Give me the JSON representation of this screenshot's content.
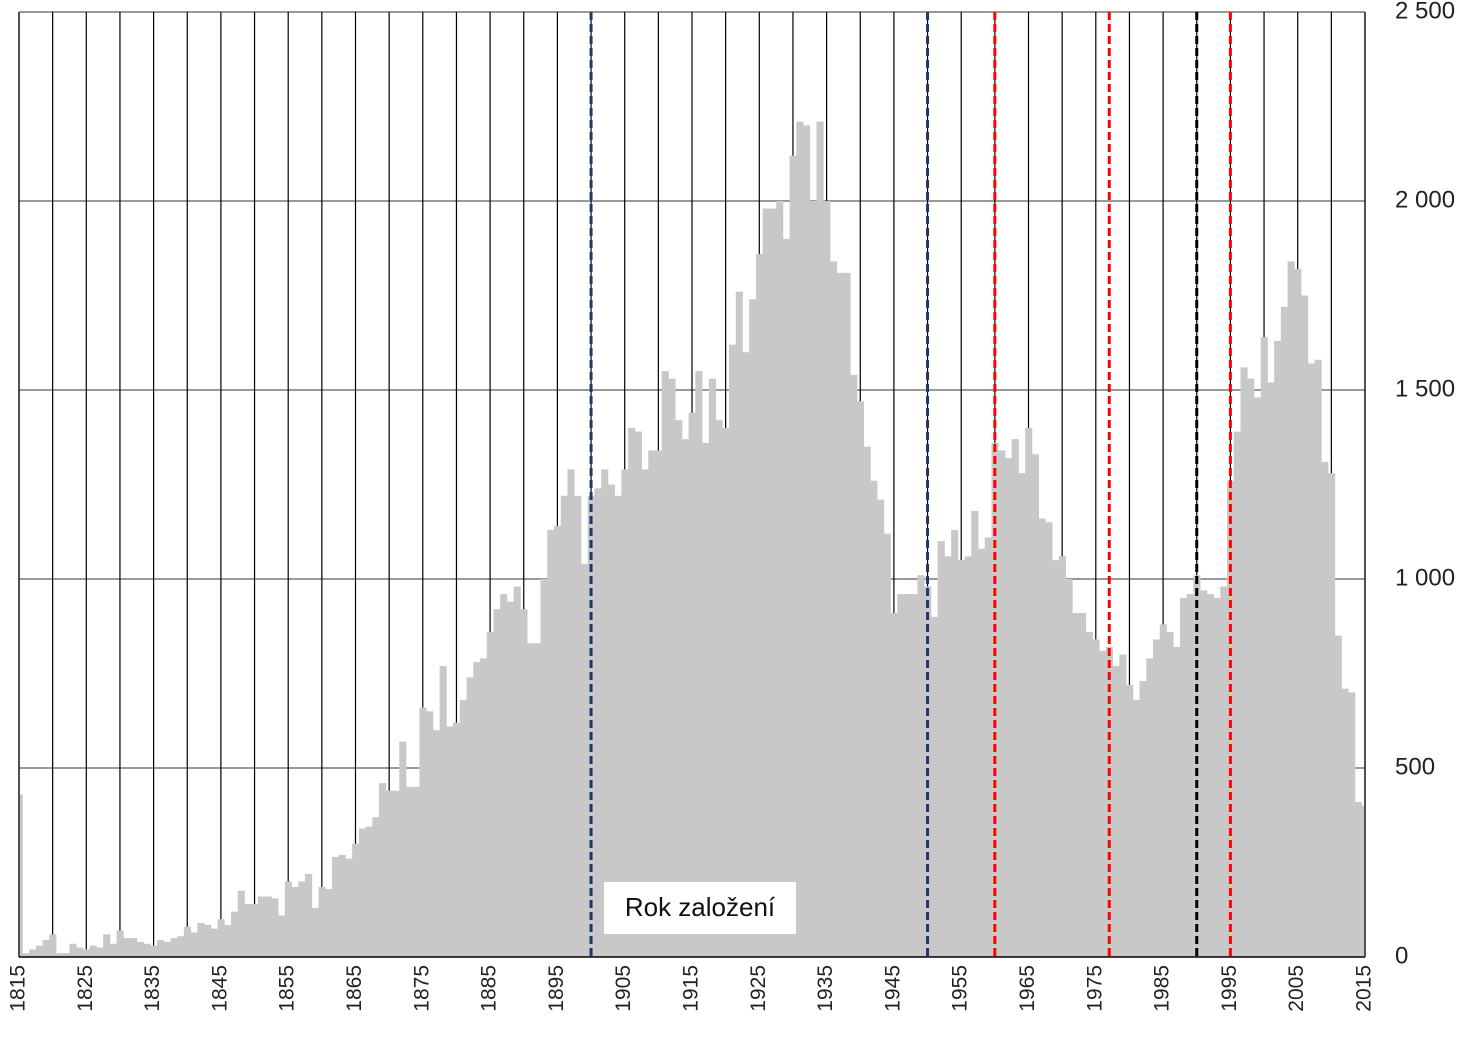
{
  "chart_data": {
    "type": "bar",
    "x": [
      1815,
      1816,
      1817,
      1818,
      1819,
      1820,
      1821,
      1822,
      1823,
      1824,
      1825,
      1826,
      1827,
      1828,
      1829,
      1830,
      1831,
      1832,
      1833,
      1834,
      1835,
      1836,
      1837,
      1838,
      1839,
      1840,
      1841,
      1842,
      1843,
      1844,
      1845,
      1846,
      1847,
      1848,
      1849,
      1850,
      1851,
      1852,
      1853,
      1854,
      1855,
      1856,
      1857,
      1858,
      1859,
      1860,
      1861,
      1862,
      1863,
      1864,
      1865,
      1866,
      1867,
      1868,
      1869,
      1870,
      1871,
      1872,
      1873,
      1874,
      1875,
      1876,
      1877,
      1878,
      1879,
      1880,
      1881,
      1882,
      1883,
      1884,
      1885,
      1886,
      1887,
      1888,
      1889,
      1890,
      1891,
      1892,
      1893,
      1894,
      1895,
      1896,
      1897,
      1898,
      1899,
      1900,
      1901,
      1902,
      1903,
      1904,
      1905,
      1906,
      1907,
      1908,
      1909,
      1910,
      1911,
      1912,
      1913,
      1914,
      1915,
      1916,
      1917,
      1918,
      1919,
      1920,
      1921,
      1922,
      1923,
      1924,
      1925,
      1926,
      1927,
      1928,
      1929,
      1930,
      1931,
      1932,
      1933,
      1934,
      1935,
      1936,
      1937,
      1938,
      1939,
      1940,
      1941,
      1942,
      1943,
      1944,
      1945,
      1946,
      1947,
      1948,
      1949,
      1950,
      1951,
      1952,
      1953,
      1954,
      1955,
      1956,
      1957,
      1958,
      1959,
      1960,
      1961,
      1962,
      1963,
      1964,
      1965,
      1966,
      1967,
      1968,
      1969,
      1970,
      1971,
      1972,
      1973,
      1974,
      1975,
      1976,
      1977,
      1978,
      1979,
      1980,
      1981,
      1982,
      1983,
      1984,
      1985,
      1986,
      1987,
      1988,
      1989,
      1990,
      1991,
      1992,
      1993,
      1994,
      1995,
      1996,
      1997,
      1998,
      1999,
      2000,
      2001,
      2002,
      2003,
      2004,
      2005,
      2006,
      2007,
      2008,
      2009,
      2010,
      2011,
      2012,
      2013,
      2014,
      2015
    ],
    "values": [
      430,
      10,
      20,
      30,
      45,
      60,
      10,
      10,
      35,
      25,
      20,
      30,
      25,
      60,
      35,
      70,
      50,
      50,
      40,
      35,
      30,
      45,
      40,
      50,
      55,
      80,
      65,
      90,
      85,
      75,
      100,
      85,
      120,
      175,
      140,
      140,
      160,
      160,
      155,
      110,
      200,
      185,
      200,
      220,
      130,
      185,
      180,
      265,
      270,
      260,
      300,
      340,
      345,
      370,
      460,
      440,
      440,
      570,
      450,
      450,
      660,
      650,
      600,
      770,
      610,
      620,
      680,
      740,
      780,
      790,
      860,
      920,
      960,
      940,
      980,
      920,
      830,
      830,
      1000,
      1130,
      1140,
      1220,
      1290,
      1220,
      1040,
      1220,
      1240,
      1290,
      1250,
      1220,
      1290,
      1400,
      1390,
      1290,
      1340,
      1340,
      1550,
      1530,
      1420,
      1370,
      1440,
      1550,
      1360,
      1530,
      1420,
      1400,
      1620,
      1760,
      1600,
      1740,
      1860,
      1980,
      1980,
      2000,
      1900,
      2120,
      2210,
      2200,
      2000,
      2210,
      2000,
      1840,
      1810,
      1810,
      1540,
      1470,
      1350,
      1260,
      1210,
      1120,
      910,
      960,
      960,
      960,
      1010,
      980,
      900,
      1100,
      1060,
      1130,
      1050,
      1060,
      1180,
      1080,
      1110,
      1360,
      1340,
      1320,
      1370,
      1280,
      1400,
      1330,
      1160,
      1150,
      1050,
      1060,
      1000,
      910,
      910,
      860,
      840,
      810,
      820,
      770,
      800,
      720,
      680,
      730,
      790,
      840,
      880,
      860,
      820,
      950,
      960,
      1010,
      970,
      960,
      950,
      980,
      1260,
      1390,
      1560,
      1530,
      1480,
      1640,
      1520,
      1630,
      1720,
      1840,
      1820,
      1750,
      1570,
      1580,
      1310,
      1280,
      850,
      710,
      700,
      410,
      400
    ],
    "color": "#c8c8c8",
    "xlim": [
      1815,
      2015
    ],
    "xticks": [
      1815,
      1825,
      1835,
      1845,
      1855,
      1865,
      1875,
      1885,
      1895,
      1905,
      1915,
      1925,
      1935,
      1945,
      1955,
      1965,
      1975,
      1985,
      1995,
      2005,
      2015
    ],
    "minor_xticks": [
      1820,
      1830,
      1840,
      1850,
      1860,
      1870,
      1880,
      1890,
      1900,
      1910,
      1920,
      1930,
      1940,
      1950,
      1960,
      1970,
      1980,
      1990,
      2000,
      2010
    ],
    "ylim": [
      0,
      2500
    ],
    "yticks": [
      0,
      500,
      {
        "value": 1000,
        "label": "1 000"
      },
      {
        "value": 1500,
        "label": "1 500"
      },
      {
        "value": 2000,
        "label": "2 000"
      },
      {
        "value": 2500,
        "label": "2 500"
      }
    ],
    "grid": true,
    "reference_lines": [
      {
        "x": 1900,
        "color": "#1f3864"
      },
      {
        "x": 1950,
        "color": "#1f3864"
      },
      {
        "x": 1960,
        "color": "#ff0000"
      },
      {
        "x": 1977,
        "color": "#ff0000"
      },
      {
        "x": 1990,
        "color": "#000000"
      },
      {
        "x": 1995,
        "color": "#ff0000"
      }
    ],
    "annotation": "Rok založení"
  }
}
